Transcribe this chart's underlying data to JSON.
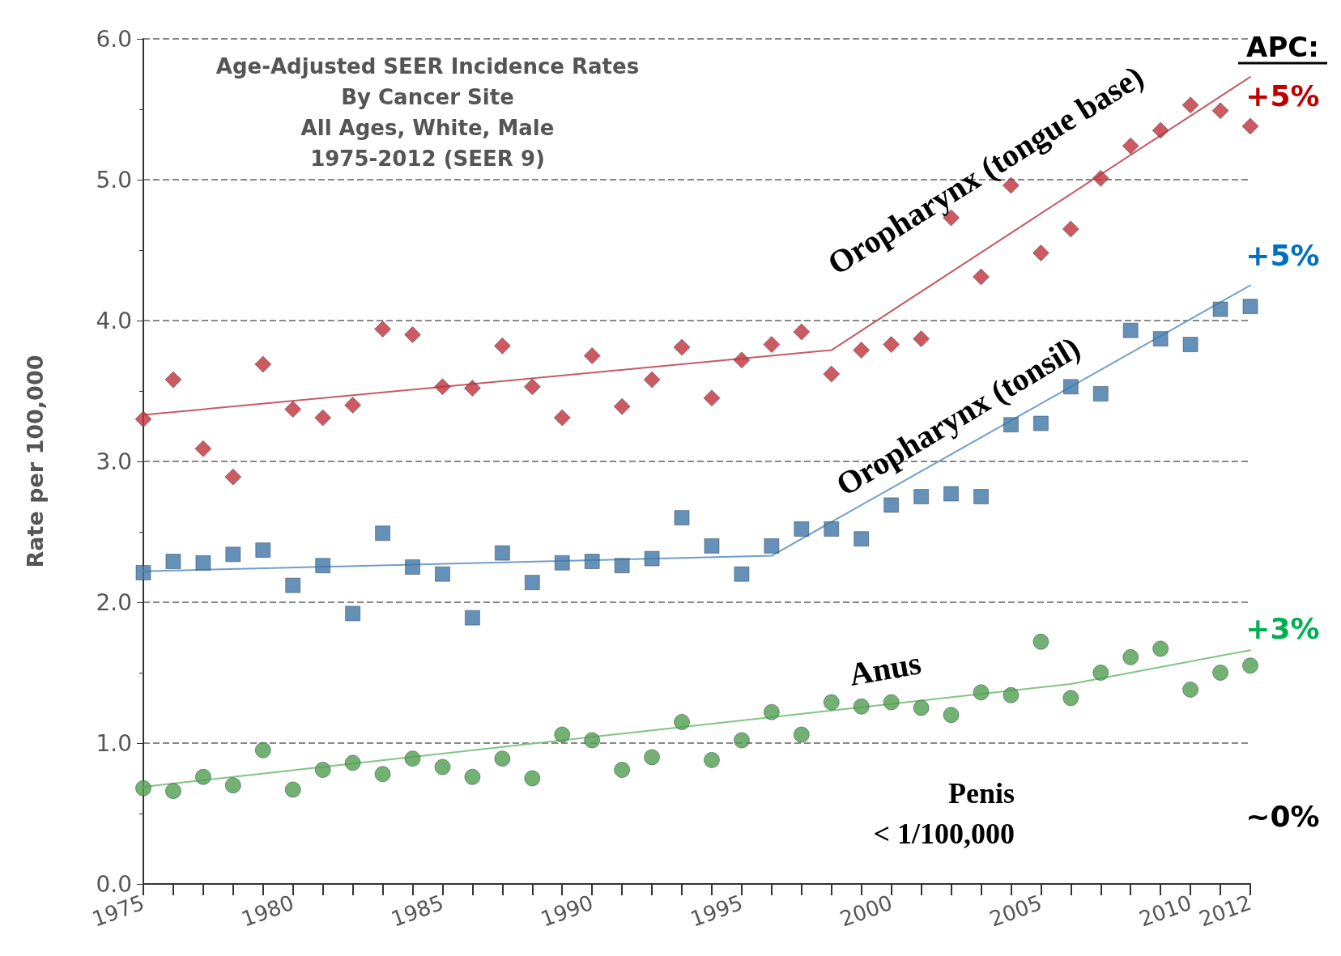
{
  "chart_data": {
    "type": "scatter",
    "title": "Age-Adjusted SEER Incidence Rates\nBy Cancer Site\nAll Ages, White, Male\n1975-2012 (SEER 9)",
    "ylabel": "Rate per 100,000",
    "x": [
      1975,
      1976,
      1977,
      1978,
      1979,
      1980,
      1981,
      1982,
      1983,
      1984,
      1985,
      1986,
      1987,
      1988,
      1989,
      1990,
      1991,
      1992,
      1993,
      1994,
      1995,
      1996,
      1997,
      1998,
      1999,
      2000,
      2001,
      2002,
      2003,
      2004,
      2005,
      2006,
      2007,
      2008,
      2009,
      2010,
      2011,
      2012
    ],
    "series": [
      {
        "name": "Oropharynx (tongue base)",
        "color": "#c0303a",
        "marker": "diamond",
        "values": [
          3.3,
          3.58,
          3.09,
          2.89,
          3.69,
          3.37,
          3.31,
          3.4,
          3.94,
          3.9,
          3.53,
          3.52,
          3.82,
          3.53,
          3.31,
          3.75,
          3.39,
          3.58,
          3.81,
          3.45,
          3.72,
          3.83,
          3.92,
          3.62,
          3.79,
          3.83,
          3.87,
          4.73,
          4.31,
          4.96,
          4.48,
          4.65,
          5.01,
          5.24,
          5.35,
          5.53,
          5.49,
          5.38
        ]
      },
      {
        "name": "Oropharynx (tonsil)",
        "color": "#3f76a8",
        "marker": "square",
        "values": [
          2.21,
          2.29,
          2.28,
          2.34,
          2.37,
          2.12,
          2.26,
          1.92,
          2.49,
          2.25,
          2.2,
          1.89,
          2.35,
          2.14,
          2.28,
          2.29,
          2.26,
          2.31,
          2.6,
          2.4,
          2.2,
          2.4,
          2.52,
          2.52,
          2.45,
          2.69,
          2.75,
          2.77,
          2.75,
          3.26,
          3.27,
          3.53,
          3.48,
          3.93,
          3.87,
          3.83,
          4.08,
          4.1
        ]
      },
      {
        "name": "Anus",
        "color": "#4f9e4f",
        "marker": "circle",
        "values": [
          0.68,
          0.66,
          0.76,
          0.7,
          0.95,
          0.67,
          0.81,
          0.86,
          0.78,
          0.89,
          0.83,
          0.76,
          0.89,
          0.75,
          1.06,
          1.02,
          0.81,
          0.9,
          1.15,
          0.88,
          1.02,
          1.22,
          1.06,
          1.29,
          1.26,
          1.29,
          1.25,
          1.2,
          1.36,
          1.34,
          1.72,
          1.32,
          1.5,
          1.61,
          1.67,
          1.38,
          1.5,
          1.55
        ]
      },
      {
        "type": "line",
        "color": "#c65a66",
        "marker": "none",
        "x": [
          1975,
          1998,
          2012
        ],
        "values": [
          3.33,
          3.79,
          5.73
        ]
      },
      {
        "type": "line",
        "color": "#6f9fc9",
        "marker": "none",
        "x": [
          1975,
          1996,
          2012
        ],
        "values": [
          2.22,
          2.33,
          4.25
        ]
      },
      {
        "type": "line",
        "color": "#82c482",
        "marker": "none",
        "x": [
          1975,
          2006,
          2012
        ],
        "values": [
          0.69,
          1.42,
          1.66
        ]
      }
    ],
    "annotations": [
      "APC:",
      "+5%",
      "+5%",
      "+3%",
      "~0%",
      "Penis",
      "< 1/100,000"
    ],
    "xlim": [
      1975,
      2012
    ],
    "xticks": [
      1975,
      {
        "value": 1976,
        "label": null
      },
      {
        "value": 1977,
        "label": null
      },
      {
        "value": 1978,
        "label": null
      },
      {
        "value": 1979,
        "label": null
      },
      1980,
      {
        "value": 1981,
        "label": null
      },
      {
        "value": 1982,
        "label": null
      },
      {
        "value": 1983,
        "label": null
      },
      {
        "value": 1984,
        "label": null
      },
      1985,
      {
        "value": 1986,
        "label": null
      },
      {
        "value": 1987,
        "label": null
      },
      {
        "value": 1988,
        "label": null
      },
      {
        "value": 1989,
        "label": null
      },
      1990,
      {
        "value": 1991,
        "label": null
      },
      {
        "value": 1992,
        "label": null
      },
      {
        "value": 1993,
        "label": null
      },
      {
        "value": 1994,
        "label": null
      },
      1995,
      {
        "value": 1996,
        "label": null
      },
      {
        "value": 1997,
        "label": null
      },
      {
        "value": 1998,
        "label": null
      },
      {
        "value": 1999,
        "label": null
      },
      2000,
      {
        "value": 2001,
        "label": null
      },
      {
        "value": 2002,
        "label": null
      },
      {
        "value": 2003,
        "label": null
      },
      {
        "value": 2004,
        "label": null
      },
      2005,
      {
        "value": 2006,
        "label": null
      },
      {
        "value": 2007,
        "label": null
      },
      {
        "value": 2008,
        "label": null
      },
      {
        "value": 2009,
        "label": null
      },
      2010,
      {
        "value": 2011,
        "label": null
      },
      2012
    ],
    "ylim": [
      0,
      6
    ],
    "yticks": [
      {
        "value": 0,
        "label": "0.0"
      },
      {
        "value": 1,
        "label": "1.0"
      },
      {
        "value": 2,
        "label": "2.0"
      },
      {
        "value": 3,
        "label": "3.0"
      },
      {
        "value": 4,
        "label": "4.0"
      },
      {
        "value": 5,
        "label": "5.0"
      },
      {
        "value": 6,
        "label": "6.0"
      }
    ],
    "grid": "y",
    "legend": false,
    "line_style": "solid"
  }
}
